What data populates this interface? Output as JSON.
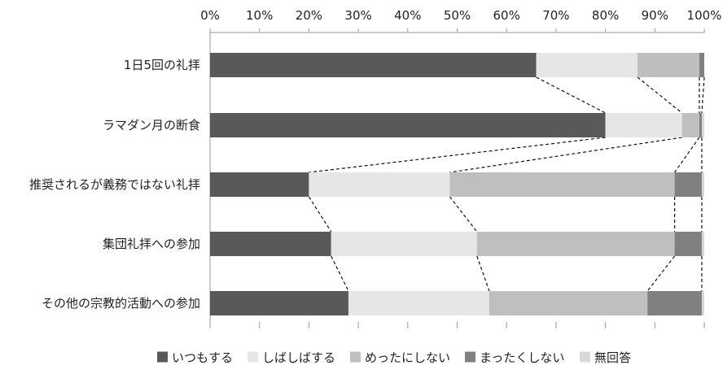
{
  "chart_data": {
    "type": "bar",
    "orientation": "horizontal",
    "stacked": true,
    "normalized_percent": true,
    "categories": [
      "1日5回の礼拝",
      "ラマダン月の断食",
      "推奨されるが義務ではない礼拝",
      "集団礼拝への参加",
      "その他の宗教的活動への参加"
    ],
    "series": [
      {
        "name": "いつもする",
        "color": "#595959",
        "values": [
          66.0,
          80.0,
          20.0,
          24.5,
          28.0
        ]
      },
      {
        "name": "しばしばする",
        "color": "#e6e6e6",
        "values": [
          20.5,
          15.5,
          28.5,
          29.5,
          28.5
        ]
      },
      {
        "name": "めったにしない",
        "color": "#bfbfbf",
        "values": [
          12.5,
          3.5,
          45.5,
          40.0,
          32.0
        ]
      },
      {
        "name": "まったくしない",
        "color": "#808080",
        "values": [
          1.0,
          0.5,
          5.5,
          5.5,
          11.0
        ]
      },
      {
        "name": "無回答",
        "color": "#d9d9d9",
        "values": [
          0.0,
          0.5,
          0.5,
          0.5,
          0.5
        ]
      }
    ],
    "xlim": [
      0,
      100
    ],
    "x_ticks": [
      "0%",
      "10%",
      "20%",
      "30%",
      "40%",
      "50%",
      "60%",
      "70%",
      "80%",
      "90%",
      "100%"
    ],
    "x_axis_position": "top",
    "grid": false,
    "legend_position": "bottom",
    "series_connector_lines": "dashed"
  }
}
